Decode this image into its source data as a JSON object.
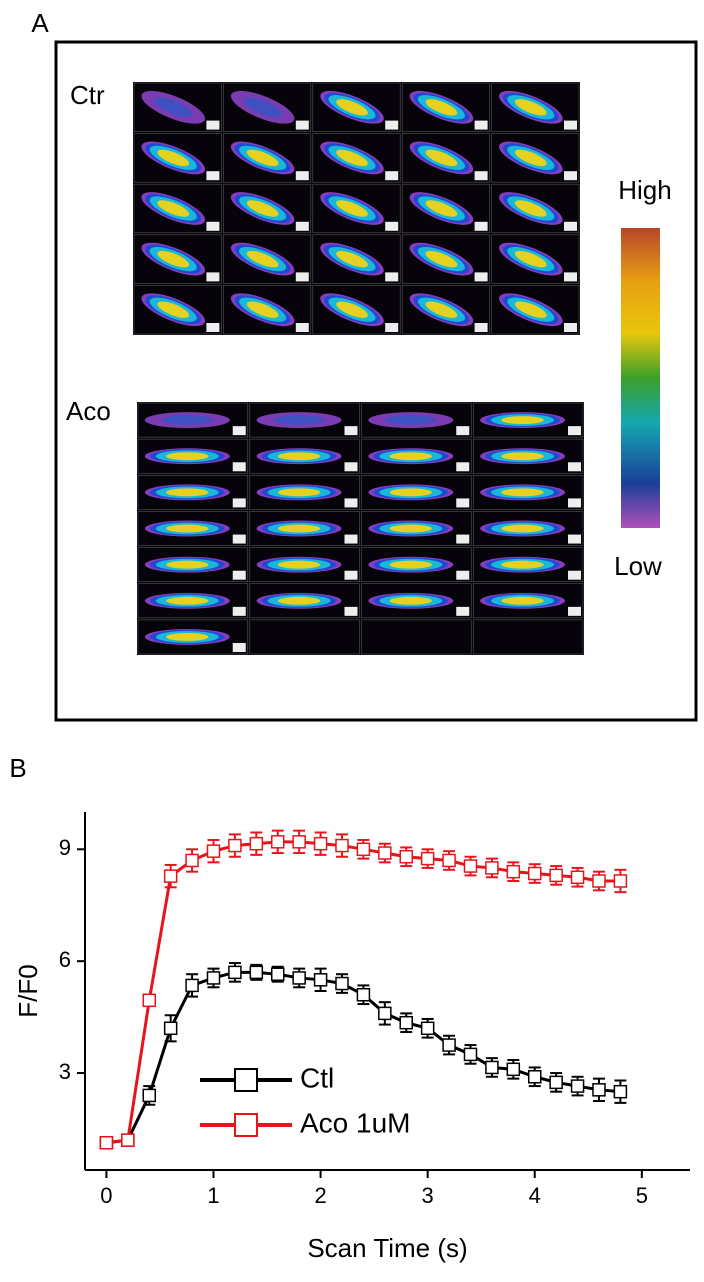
{
  "panel_a": {
    "label": "A",
    "rows": [
      "Ctr",
      "Aco"
    ],
    "scale_high": "High",
    "scale_low": "Low"
  },
  "chart_data": {
    "type": "line",
    "panel_label": "B",
    "x_label": "Scan Time (s)",
    "y_label": "F/F0",
    "x": [
      0,
      0.2,
      0.4,
      0.6,
      0.8,
      1.0,
      1.2,
      1.4,
      1.6,
      1.8,
      2.0,
      2.2,
      2.4,
      2.6,
      2.8,
      3.0,
      3.2,
      3.4,
      3.6,
      3.8,
      4.0,
      4.2,
      4.4,
      4.6,
      4.8
    ],
    "series": [
      {
        "name": "Ctl",
        "color": "#000000",
        "values": [
          1.13,
          1.2,
          2.4,
          4.2,
          5.35,
          5.55,
          5.7,
          5.7,
          5.65,
          5.55,
          5.5,
          5.4,
          5.1,
          4.6,
          4.35,
          4.2,
          3.75,
          3.5,
          3.15,
          3.1,
          2.9,
          2.75,
          2.65,
          2.55,
          2.5
        ],
        "errors": [
          0.1,
          0.15,
          0.25,
          0.35,
          0.3,
          0.25,
          0.25,
          0.2,
          0.2,
          0.25,
          0.3,
          0.25,
          0.25,
          0.3,
          0.25,
          0.25,
          0.25,
          0.25,
          0.25,
          0.25,
          0.25,
          0.25,
          0.25,
          0.3,
          0.3
        ]
      },
      {
        "name": "Aco 1uM",
        "color": "#e8141b",
        "values": [
          1.13,
          1.2,
          4.95,
          8.28,
          8.7,
          8.95,
          9.1,
          9.15,
          9.2,
          9.2,
          9.15,
          9.1,
          9.0,
          8.9,
          8.8,
          8.75,
          8.7,
          8.55,
          8.5,
          8.4,
          8.35,
          8.3,
          8.25,
          8.15,
          8.15
        ],
        "errors": [
          0.1,
          0.15,
          0.15,
          0.3,
          0.3,
          0.3,
          0.3,
          0.3,
          0.3,
          0.3,
          0.3,
          0.3,
          0.25,
          0.25,
          0.25,
          0.25,
          0.25,
          0.25,
          0.25,
          0.25,
          0.25,
          0.25,
          0.25,
          0.25,
          0.3
        ]
      }
    ],
    "xlim": [
      -0.2,
      5.45
    ],
    "ylim": [
      0.4,
      10
    ],
    "xticks": [
      0,
      1,
      2,
      3,
      4,
      5
    ],
    "yticks": [
      3,
      6,
      9
    ]
  }
}
